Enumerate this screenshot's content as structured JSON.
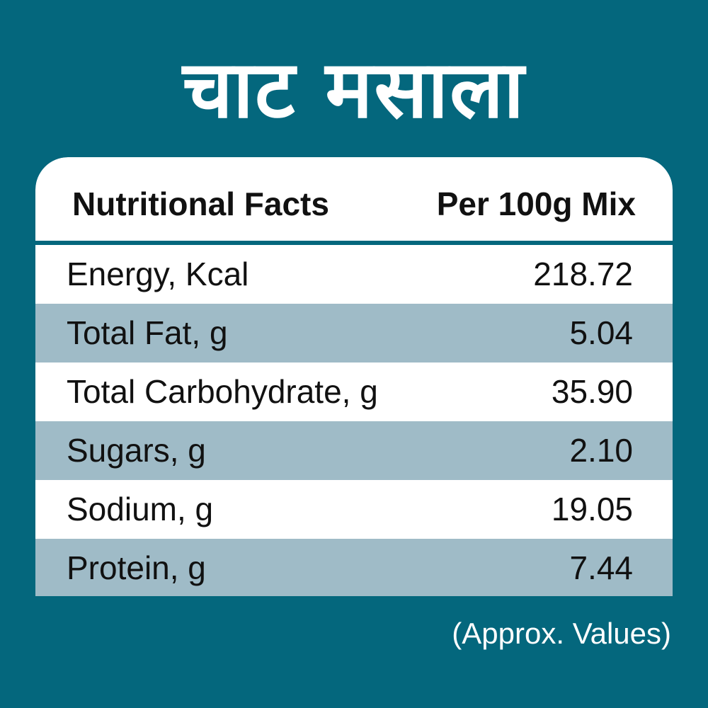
{
  "title": "चाट मसाला",
  "table": {
    "header": {
      "left": "Nutritional Facts",
      "right": "Per 100g Mix"
    },
    "rows": [
      {
        "label": "Energy, Kcal",
        "value": "218.72"
      },
      {
        "label": "Total Fat, g",
        "value": "5.04"
      },
      {
        "label": "Total Carbohydrate, g",
        "value": "35.90"
      },
      {
        "label": "Sugars, g",
        "value": "2.10"
      },
      {
        "label": "Sodium, g",
        "value": "19.05"
      },
      {
        "label": "Protein, g",
        "value": "7.44"
      }
    ]
  },
  "note": "(Approx. Values)",
  "colors": {
    "background": "#04677d",
    "row_light": "#ffffff",
    "row_shade": "#9fbbc7",
    "text": "#111111"
  }
}
